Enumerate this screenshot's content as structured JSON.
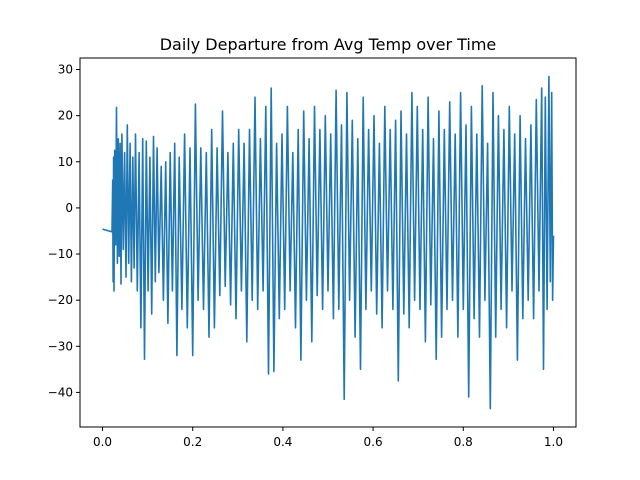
{
  "chart_data": {
    "type": "line",
    "title": "Daily Departure from Avg Temp over Time",
    "xlabel": "",
    "ylabel": "",
    "xlim": [
      -0.05,
      1.05
    ],
    "ylim": [
      -47.5,
      32.5
    ],
    "x_ticks": [
      0.0,
      0.2,
      0.4,
      0.6,
      0.8,
      1.0
    ],
    "x_tick_labels": [
      "0.0",
      "0.2",
      "0.4",
      "0.6",
      "0.8",
      "1.0"
    ],
    "y_ticks": [
      30,
      20,
      10,
      0,
      -10,
      -20,
      -30,
      -40
    ],
    "y_tick_labels": [
      "30",
      "20",
      "10",
      "0",
      "−10",
      "−20",
      "−30",
      "−40"
    ],
    "grid": false,
    "legend": "none",
    "series": [
      {
        "color": "#1f77b4",
        "points": [
          [
            0.0,
            -4.6
          ],
          [
            0.021,
            -5.2
          ],
          [
            0.0225,
            6.0
          ],
          [
            0.0235,
            -16.0
          ],
          [
            0.0245,
            11.0
          ],
          [
            0.0255,
            -18.0
          ],
          [
            0.027,
            12.5
          ],
          [
            0.029,
            -8.0
          ],
          [
            0.031,
            21.8
          ],
          [
            0.033,
            -12.0
          ],
          [
            0.035,
            15.0
          ],
          [
            0.037,
            -10.5
          ],
          [
            0.039,
            14.0
          ],
          [
            0.041,
            -16.5
          ],
          [
            0.043,
            16.0
          ],
          [
            0.046,
            -9.0
          ],
          [
            0.049,
            12.0
          ],
          [
            0.052,
            -15.0
          ],
          [
            0.055,
            18.0
          ],
          [
            0.058,
            -12.0
          ],
          [
            0.061,
            14.0
          ],
          [
            0.064,
            -16.0
          ],
          [
            0.067,
            11.0
          ],
          [
            0.07,
            -13.0
          ],
          [
            0.073,
            16.0
          ],
          [
            0.077,
            -18.0
          ],
          [
            0.081,
            12.0
          ],
          [
            0.085,
            -26.0
          ],
          [
            0.089,
            15.0
          ],
          [
            0.093,
            -32.8
          ],
          [
            0.097,
            14.5
          ],
          [
            0.101,
            -18.0
          ],
          [
            0.105,
            11.0
          ],
          [
            0.109,
            -23.0
          ],
          [
            0.113,
            15.5
          ],
          [
            0.117,
            -16.0
          ],
          [
            0.121,
            13.0
          ],
          [
            0.125,
            -14.0
          ],
          [
            0.13,
            9.0
          ],
          [
            0.135,
            -20.0
          ],
          [
            0.14,
            10.0
          ],
          [
            0.145,
            -25.0
          ],
          [
            0.15,
            12.0
          ],
          [
            0.155,
            -18.0
          ],
          [
            0.16,
            14.0
          ],
          [
            0.165,
            -32.0
          ],
          [
            0.17,
            11.0
          ],
          [
            0.176,
            -22.0
          ],
          [
            0.182,
            16.0
          ],
          [
            0.188,
            -26.0
          ],
          [
            0.194,
            13.0
          ],
          [
            0.2,
            -32.0
          ],
          [
            0.206,
            22.5
          ],
          [
            0.212,
            -20.0
          ],
          [
            0.218,
            13.0
          ],
          [
            0.224,
            -22.0
          ],
          [
            0.23,
            12.0
          ],
          [
            0.236,
            -28.0
          ],
          [
            0.242,
            17.0
          ],
          [
            0.248,
            -26.0
          ],
          [
            0.254,
            13.0
          ],
          [
            0.26,
            -19.0
          ],
          [
            0.266,
            21.0
          ],
          [
            0.272,
            -17.0
          ],
          [
            0.278,
            12.0
          ],
          [
            0.284,
            -21.0
          ],
          [
            0.29,
            14.0
          ],
          [
            0.296,
            -24.0
          ],
          [
            0.302,
            17.0
          ],
          [
            0.308,
            -18.0
          ],
          [
            0.314,
            14.0
          ],
          [
            0.32,
            -29.0
          ],
          [
            0.326,
            17.0
          ],
          [
            0.332,
            -20.0
          ],
          [
            0.338,
            24.0
          ],
          [
            0.344,
            -22.0
          ],
          [
            0.35,
            15.0
          ],
          [
            0.356,
            -18.0
          ],
          [
            0.362,
            22.0
          ],
          [
            0.368,
            -36.0
          ],
          [
            0.374,
            26.0
          ],
          [
            0.38,
            -35.5
          ],
          [
            0.386,
            14.0
          ],
          [
            0.392,
            -24.0
          ],
          [
            0.398,
            16.0
          ],
          [
            0.404,
            -22.0
          ],
          [
            0.41,
            22.0
          ],
          [
            0.416,
            -18.0
          ],
          [
            0.422,
            12.0
          ],
          [
            0.428,
            -26.0
          ],
          [
            0.434,
            17.0
          ],
          [
            0.44,
            -33.0
          ],
          [
            0.446,
            21.0
          ],
          [
            0.452,
            -20.0
          ],
          [
            0.458,
            15.0
          ],
          [
            0.464,
            -29.0
          ],
          [
            0.47,
            22.0
          ],
          [
            0.476,
            -19.0
          ],
          [
            0.482,
            17.0
          ],
          [
            0.488,
            -22.0
          ],
          [
            0.494,
            20.0
          ],
          [
            0.5,
            -18.0
          ],
          [
            0.506,
            16.0
          ],
          [
            0.512,
            -24.0
          ],
          [
            0.518,
            25.5
          ],
          [
            0.524,
            -22.0
          ],
          [
            0.53,
            18.0
          ],
          [
            0.536,
            -41.5
          ],
          [
            0.542,
            25.0
          ],
          [
            0.548,
            -20.0
          ],
          [
            0.554,
            19.0
          ],
          [
            0.56,
            -28.0
          ],
          [
            0.566,
            15.0
          ],
          [
            0.572,
            -35.0
          ],
          [
            0.578,
            24.0
          ],
          [
            0.584,
            -22.0
          ],
          [
            0.59,
            17.0
          ],
          [
            0.596,
            -18.0
          ],
          [
            0.602,
            20.0
          ],
          [
            0.608,
            -23.0
          ],
          [
            0.614,
            14.0
          ],
          [
            0.62,
            -26.0
          ],
          [
            0.626,
            22.0
          ],
          [
            0.632,
            -18.0
          ],
          [
            0.638,
            17.0
          ],
          [
            0.644,
            -22.0
          ],
          [
            0.65,
            19.0
          ],
          [
            0.656,
            -37.5
          ],
          [
            0.662,
            21.0
          ],
          [
            0.668,
            -23.0
          ],
          [
            0.674,
            16.0
          ],
          [
            0.68,
            -26.0
          ],
          [
            0.686,
            25.0
          ],
          [
            0.692,
            -20.0
          ],
          [
            0.698,
            22.0
          ],
          [
            0.704,
            -22.0
          ],
          [
            0.71,
            17.0
          ],
          [
            0.716,
            -29.0
          ],
          [
            0.722,
            24.0
          ],
          [
            0.728,
            -21.0
          ],
          [
            0.734,
            15.0
          ],
          [
            0.74,
            -32.8
          ],
          [
            0.746,
            21.0
          ],
          [
            0.752,
            -28.0
          ],
          [
            0.758,
            17.0
          ],
          [
            0.764,
            -22.0
          ],
          [
            0.77,
            23.0
          ],
          [
            0.776,
            -20.0
          ],
          [
            0.782,
            16.0
          ],
          [
            0.788,
            -28.0
          ],
          [
            0.794,
            25.0
          ],
          [
            0.8,
            -22.0
          ],
          [
            0.806,
            18.0
          ],
          [
            0.812,
            -41.0
          ],
          [
            0.818,
            22.0
          ],
          [
            0.824,
            -24.0
          ],
          [
            0.83,
            16.0
          ],
          [
            0.836,
            -28.0
          ],
          [
            0.842,
            26.5
          ],
          [
            0.848,
            -20.0
          ],
          [
            0.854,
            14.0
          ],
          [
            0.86,
            -43.5
          ],
          [
            0.866,
            25.0
          ],
          [
            0.872,
            -28.0
          ],
          [
            0.878,
            20.0
          ],
          [
            0.884,
            -22.0
          ],
          [
            0.89,
            17.0
          ],
          [
            0.896,
            -26.0
          ],
          [
            0.902,
            22.0
          ],
          [
            0.908,
            -18.0
          ],
          [
            0.914,
            16.0
          ],
          [
            0.92,
            -33.0
          ],
          [
            0.926,
            20.0
          ],
          [
            0.932,
            -24.0
          ],
          [
            0.938,
            15.0
          ],
          [
            0.944,
            -20.0
          ],
          [
            0.95,
            18.0
          ],
          [
            0.956,
            -24.0
          ],
          [
            0.962,
            23.5
          ],
          [
            0.968,
            -18.0
          ],
          [
            0.974,
            26.0
          ],
          [
            0.978,
            -35.0
          ],
          [
            0.982,
            24.0
          ],
          [
            0.986,
            -22.0
          ],
          [
            0.99,
            28.5
          ],
          [
            0.993,
            -16.0
          ],
          [
            0.996,
            25.0
          ],
          [
            0.998,
            -20.0
          ],
          [
            1.0,
            -6.0
          ]
        ]
      }
    ]
  }
}
